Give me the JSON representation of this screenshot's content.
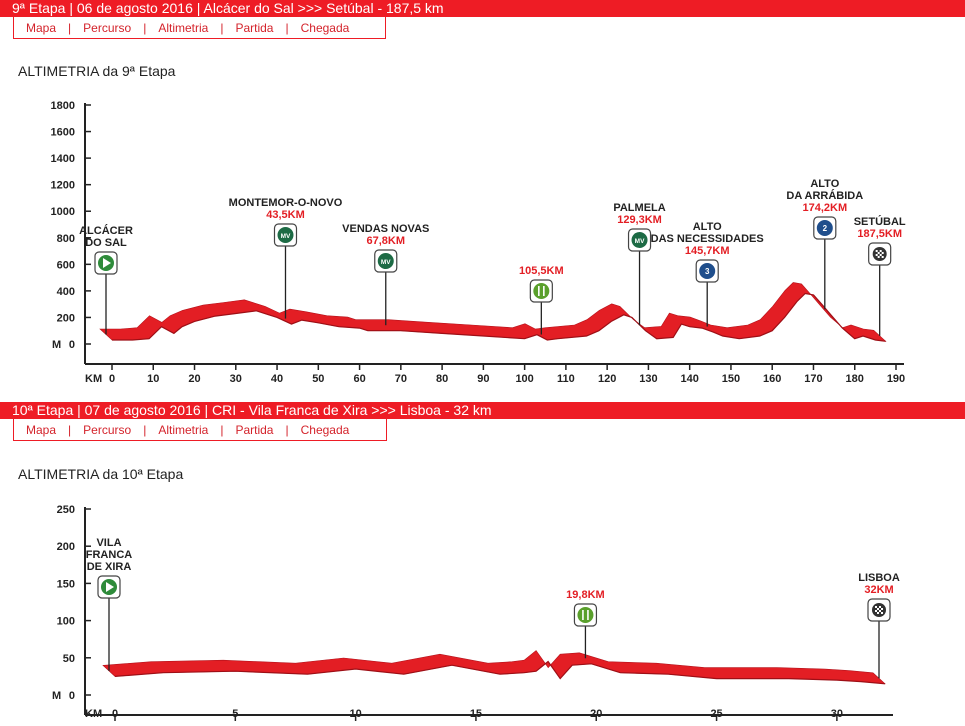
{
  "stages": [
    {
      "bar_text": "9ª Etapa  |  06 de agosto 2016  |  Alcácer do Sal  >>>  Setúbal  -  187,5 km",
      "nav": [
        "Mapa",
        "Percurso",
        "Altimetria",
        "Partida",
        "Chegada"
      ],
      "section_title": "ALTIMETRIA da 9ª Etapa"
    },
    {
      "bar_text": "10ª Etapa  |  07 de agosto 2016  |  CRI - Vila Franca de Xira  >>>  Lisboa  -  32 km",
      "nav": [
        "Mapa",
        "Percurso",
        "Altimetria",
        "Partida",
        "Chegada"
      ],
      "section_title": "ALTIMETRIA da 10ª Etapa"
    }
  ],
  "chart_data": [
    {
      "type": "area",
      "xlabel": "KM",
      "ylabel": "M",
      "xlim": [
        0,
        190
      ],
      "ylim": [
        0,
        1800
      ],
      "x_ticks": [
        0,
        10,
        20,
        30,
        40,
        50,
        60,
        70,
        80,
        90,
        100,
        110,
        120,
        130,
        140,
        150,
        160,
        170,
        180,
        190
      ],
      "y_ticks": [
        0,
        200,
        400,
        600,
        800,
        1000,
        1200,
        1400,
        1600,
        1800
      ],
      "accent_color": "#e31e24",
      "x": [
        0,
        5,
        9,
        12,
        15,
        17,
        20,
        25,
        30,
        35,
        38,
        40,
        43.5,
        46,
        50,
        55,
        60,
        62,
        67.8,
        70,
        80,
        90,
        100,
        103,
        105.5,
        108,
        115,
        118,
        121,
        124,
        126,
        129.3,
        132,
        136,
        138,
        140,
        143,
        145.7,
        148,
        152,
        157,
        160,
        163,
        166,
        168,
        170,
        172,
        174.2,
        177,
        180,
        182,
        185,
        187.5
      ],
      "y": [
        30,
        30,
        40,
        130,
        80,
        130,
        170,
        210,
        230,
        250,
        220,
        200,
        150,
        180,
        160,
        130,
        120,
        100,
        100,
        100,
        80,
        60,
        40,
        70,
        30,
        40,
        60,
        100,
        170,
        220,
        200,
        100,
        40,
        50,
        150,
        130,
        120,
        90,
        60,
        40,
        60,
        100,
        200,
        320,
        380,
        370,
        300,
        220,
        120,
        40,
        60,
        30,
        20
      ],
      "annotations": [
        {
          "km": 0,
          "name": [
            "ALCÁCER",
            "DO SAL"
          ],
          "distance": "",
          "icon": "start-flag-icon",
          "icon_text": ""
        },
        {
          "km": 43.5,
          "name": [
            "MONTEMOR-O-NOVO"
          ],
          "distance": "43,5KM",
          "icon": "sprint-mv-icon",
          "icon_text": "MV"
        },
        {
          "km": 67.8,
          "name": [
            "VENDAS NOVAS"
          ],
          "distance": "67,8KM",
          "icon": "sprint-mv-icon",
          "icon_text": "MV"
        },
        {
          "km": 105.5,
          "name": [],
          "distance": "105,5KM",
          "icon": "feed-zone-icon",
          "icon_text": ""
        },
        {
          "km": 129.3,
          "name": [
            "PALMELA"
          ],
          "distance": "129,3KM",
          "icon": "sprint-mv-icon",
          "icon_text": "MV"
        },
        {
          "km": 145.7,
          "name": [
            "ALTO",
            "DAS NECESSIDADES"
          ],
          "distance": "145,7KM",
          "icon": "mountain-prize-icon",
          "icon_text": "3"
        },
        {
          "km": 174.2,
          "name": [
            "ALTO",
            "DA ARRÁBIDA"
          ],
          "distance": "174,2KM",
          "icon": "mountain-prize-icon",
          "icon_text": "2"
        },
        {
          "km": 187.5,
          "name": [
            "SETÚBAL"
          ],
          "distance": "187,5KM",
          "icon": "finish-flag-icon",
          "icon_text": ""
        }
      ]
    },
    {
      "type": "area",
      "xlabel": "KM",
      "ylabel": "M",
      "xlim": [
        0,
        32
      ],
      "ylim": [
        0,
        250
      ],
      "x_ticks": [
        0,
        5,
        10,
        15,
        20,
        25,
        30
      ],
      "y_ticks": [
        0,
        50,
        100,
        150,
        200,
        250
      ],
      "accent_color": "#e31e24",
      "x": [
        0,
        2,
        5,
        8,
        10,
        12,
        14,
        16,
        17,
        17.5,
        18,
        18.5,
        19,
        19.8,
        21,
        23,
        25,
        28,
        30,
        31,
        32
      ],
      "y": [
        25,
        30,
        32,
        28,
        35,
        28,
        40,
        28,
        30,
        32,
        45,
        22,
        40,
        42,
        30,
        28,
        22,
        22,
        20,
        18,
        15
      ],
      "annotations": [
        {
          "km": 0,
          "name": [
            "VILA",
            "FRANCA",
            "DE XIRA"
          ],
          "distance": "",
          "icon": "start-flag-icon",
          "icon_text": ""
        },
        {
          "km": 19.8,
          "name": [],
          "distance": "19,8KM",
          "icon": "feed-zone-icon",
          "icon_text": ""
        },
        {
          "km": 32,
          "name": [
            "LISBOA"
          ],
          "distance": "32KM",
          "icon": "finish-flag-icon",
          "icon_text": ""
        }
      ]
    }
  ]
}
